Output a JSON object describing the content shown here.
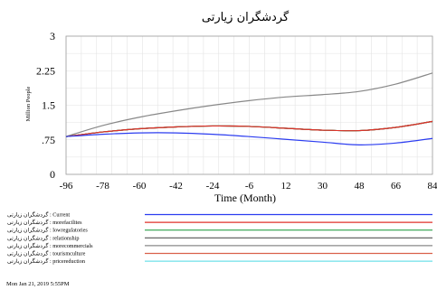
{
  "chart_data": {
    "type": "line",
    "title": "گردشگران زیارتی",
    "xlabel": "Time (Month)",
    "ylabel": "Million People",
    "xlim": [
      -96,
      84
    ],
    "ylim": [
      0,
      3
    ],
    "x_ticks": [
      "-96",
      "-78",
      "-60",
      "-42",
      "-24",
      "-6",
      "12",
      "30",
      "48",
      "66",
      "84"
    ],
    "y_ticks": [
      "0",
      ".75",
      "1.5",
      "2.25",
      "3"
    ],
    "grid": true,
    "x": [
      -96,
      -78,
      -60,
      -42,
      -24,
      -6,
      12,
      30,
      48,
      66,
      84
    ],
    "series": [
      {
        "name": "Current",
        "color": "#2b3cf0",
        "values": [
          0.82,
          0.87,
          0.9,
          0.9,
          0.87,
          0.82,
          0.76,
          0.7,
          0.64,
          0.68,
          0.78
        ]
      },
      {
        "name": "morefacilites",
        "color": "#e0302a",
        "values": [
          0.82,
          0.92,
          0.99,
          1.03,
          1.05,
          1.04,
          1.0,
          0.96,
          0.95,
          1.02,
          1.15
        ]
      },
      {
        "name": "lowregulatories",
        "color": "#2ea04a",
        "values": [
          0.82,
          0.92,
          0.99,
          1.03,
          1.05,
          1.04,
          1.0,
          0.96,
          0.95,
          1.02,
          1.15
        ]
      },
      {
        "name": "relationship",
        "color": "#555555",
        "values": [
          0.82,
          0.92,
          0.99,
          1.03,
          1.05,
          1.04,
          1.0,
          0.96,
          0.95,
          1.02,
          1.15
        ]
      },
      {
        "name": "morecommercials",
        "color": "#888888",
        "values": [
          0.82,
          1.06,
          1.24,
          1.38,
          1.5,
          1.6,
          1.68,
          1.73,
          1.8,
          1.96,
          2.2
        ]
      },
      {
        "name": "tourismculture",
        "color": "#d9604a",
        "values": [
          0.82,
          0.92,
          0.99,
          1.03,
          1.05,
          1.04,
          1.0,
          0.96,
          0.95,
          1.02,
          1.15
        ]
      },
      {
        "name": "pricereduction",
        "color": "#6fe0e8",
        "values": [
          0.82,
          0.92,
          0.99,
          1.03,
          1.05,
          1.04,
          1.0,
          0.96,
          0.95,
          1.02,
          1.15
        ]
      }
    ],
    "legend_position": "bottom"
  },
  "legend_prefix": "گردشگران زیارتی :",
  "timestamp": "Mon Jan 21, 2019 5:55PM"
}
